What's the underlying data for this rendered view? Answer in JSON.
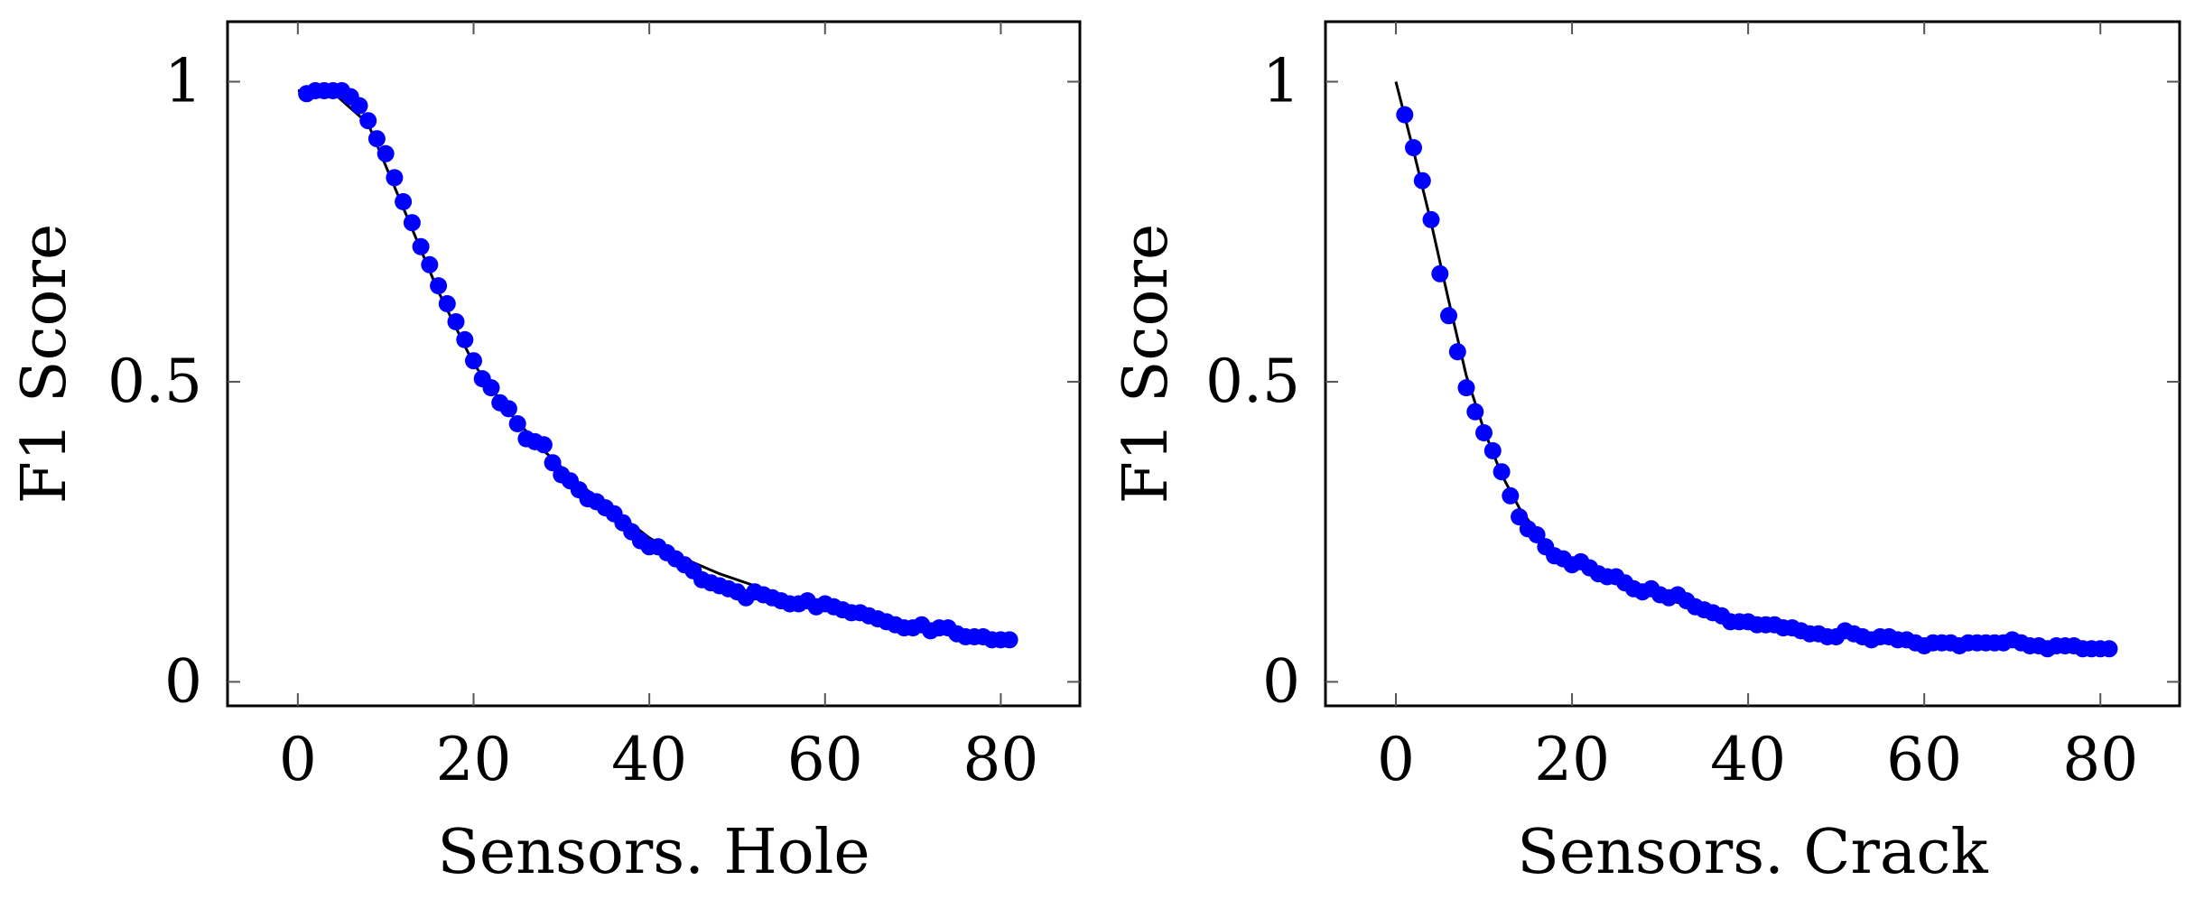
{
  "chart_data": [
    {
      "type": "scatter",
      "title": "",
      "xlabel": "Sensors. Hole",
      "ylabel": "F1 Score",
      "xlim": [
        -8,
        89
      ],
      "ylim": [
        -0.04,
        1.1
      ],
      "xticks": [
        0,
        20,
        40,
        60,
        80
      ],
      "xtick_labels": [
        "0",
        "20",
        "40",
        "60",
        "80"
      ],
      "yticks": [
        0,
        0.5,
        1
      ],
      "ytick_labels": [
        "0",
        "0.5",
        "1"
      ],
      "grid": false,
      "series": [
        {
          "name": "data",
          "color": "#0000ff",
          "marker": "circle",
          "x": [
            1,
            2,
            3,
            4,
            5,
            6,
            7,
            8,
            9,
            10,
            11,
            12,
            13,
            14,
            15,
            16,
            17,
            18,
            19,
            20,
            21,
            22,
            23,
            24,
            25,
            26,
            27,
            28,
            29,
            30,
            31,
            32,
            33,
            34,
            35,
            36,
            37,
            38,
            39,
            40,
            41,
            42,
            43,
            44,
            45,
            46,
            47,
            48,
            49,
            50,
            51,
            52,
            53,
            54,
            55,
            56,
            57,
            58,
            59,
            60,
            61,
            62,
            63,
            64,
            65,
            66,
            67,
            68,
            69,
            70,
            71,
            72,
            73,
            74,
            75,
            76,
            77,
            78,
            79,
            80,
            81
          ],
          "y": [
            0.98,
            0.985,
            0.985,
            0.985,
            0.985,
            0.975,
            0.96,
            0.935,
            0.905,
            0.88,
            0.84,
            0.8,
            0.765,
            0.725,
            0.695,
            0.66,
            0.63,
            0.6,
            0.57,
            0.535,
            0.505,
            0.49,
            0.465,
            0.455,
            0.43,
            0.405,
            0.4,
            0.395,
            0.365,
            0.345,
            0.335,
            0.32,
            0.305,
            0.3,
            0.29,
            0.28,
            0.265,
            0.25,
            0.235,
            0.225,
            0.225,
            0.215,
            0.205,
            0.195,
            0.185,
            0.17,
            0.165,
            0.16,
            0.155,
            0.15,
            0.14,
            0.15,
            0.145,
            0.14,
            0.135,
            0.13,
            0.13,
            0.135,
            0.125,
            0.13,
            0.125,
            0.12,
            0.115,
            0.115,
            0.11,
            0.105,
            0.1,
            0.095,
            0.09,
            0.09,
            0.095,
            0.085,
            0.09,
            0.09,
            0.08,
            0.075,
            0.075,
            0.075,
            0.07,
            0.07,
            0.07
          ]
        },
        {
          "name": "fit",
          "color": "#000000",
          "marker": "none",
          "x": [
            0,
            4,
            8,
            12,
            16,
            20,
            24,
            28,
            32,
            36,
            40,
            44,
            48,
            52,
            56,
            60,
            64,
            68,
            72,
            76,
            80
          ],
          "y": [
            0.985,
            0.982,
            0.93,
            0.79,
            0.65,
            0.53,
            0.45,
            0.385,
            0.33,
            0.285,
            0.24,
            0.205,
            0.18,
            0.16,
            0.14,
            0.125,
            0.115,
            0.1,
            0.09,
            0.08,
            0.07
          ]
        }
      ]
    },
    {
      "type": "scatter",
      "title": "",
      "xlabel": "Sensors. Crack",
      "ylabel": "F1 Score",
      "xlim": [
        -8,
        89
      ],
      "ylim": [
        -0.04,
        1.1
      ],
      "xticks": [
        0,
        20,
        40,
        60,
        80
      ],
      "xtick_labels": [
        "0",
        "20",
        "40",
        "60",
        "80"
      ],
      "yticks": [
        0,
        0.5,
        1
      ],
      "ytick_labels": [
        "0",
        "0.5",
        "1"
      ],
      "grid": false,
      "series": [
        {
          "name": "data",
          "color": "#0000ff",
          "marker": "circle",
          "x": [
            1,
            2,
            3,
            4,
            5,
            6,
            7,
            8,
            9,
            10,
            11,
            12,
            13,
            14,
            15,
            16,
            17,
            18,
            19,
            20,
            21,
            22,
            23,
            24,
            25,
            26,
            27,
            28,
            29,
            30,
            31,
            32,
            33,
            34,
            35,
            36,
            37,
            38,
            39,
            40,
            41,
            42,
            43,
            44,
            45,
            46,
            47,
            48,
            49,
            50,
            51,
            52,
            53,
            54,
            55,
            56,
            57,
            58,
            59,
            60,
            61,
            62,
            63,
            64,
            65,
            66,
            67,
            68,
            69,
            70,
            71,
            72,
            73,
            74,
            75,
            76,
            77,
            78,
            79,
            80,
            81
          ],
          "y": [
            0.945,
            0.89,
            0.835,
            0.77,
            0.68,
            0.61,
            0.55,
            0.49,
            0.45,
            0.415,
            0.385,
            0.35,
            0.31,
            0.275,
            0.255,
            0.245,
            0.225,
            0.21,
            0.205,
            0.195,
            0.2,
            0.19,
            0.18,
            0.175,
            0.175,
            0.165,
            0.155,
            0.15,
            0.155,
            0.145,
            0.14,
            0.145,
            0.135,
            0.125,
            0.12,
            0.115,
            0.11,
            0.1,
            0.1,
            0.1,
            0.095,
            0.095,
            0.095,
            0.09,
            0.09,
            0.085,
            0.08,
            0.08,
            0.075,
            0.075,
            0.085,
            0.08,
            0.075,
            0.07,
            0.075,
            0.075,
            0.07,
            0.07,
            0.065,
            0.06,
            0.065,
            0.065,
            0.065,
            0.06,
            0.065,
            0.065,
            0.065,
            0.065,
            0.065,
            0.07,
            0.065,
            0.06,
            0.06,
            0.055,
            0.06,
            0.06,
            0.06,
            0.055,
            0.055,
            0.055,
            0.055
          ]
        },
        {
          "name": "fit",
          "color": "#000000",
          "marker": "none",
          "x": [
            0,
            2,
            4,
            6,
            8,
            10,
            12,
            14,
            16,
            18,
            20,
            25,
            30,
            35,
            40,
            50,
            60,
            70,
            80
          ],
          "y": [
            1.0,
            0.885,
            0.765,
            0.635,
            0.51,
            0.42,
            0.345,
            0.29,
            0.25,
            0.22,
            0.2,
            0.165,
            0.14,
            0.12,
            0.105,
            0.08,
            0.065,
            0.06,
            0.055
          ]
        }
      ]
    }
  ]
}
